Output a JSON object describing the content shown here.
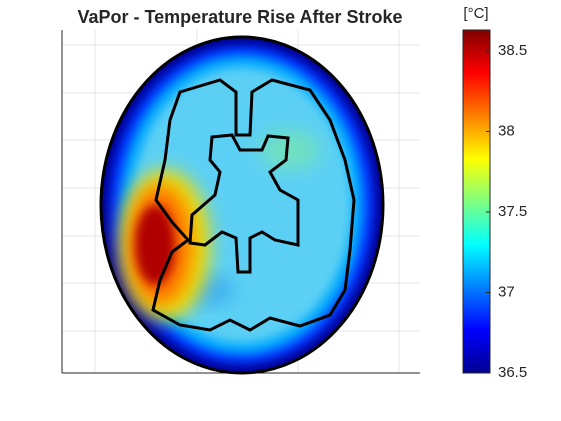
{
  "chart_data": {
    "type": "heatmap",
    "title": "VaPor - Temperature Rise After Stroke",
    "colorbar_label": "[°C]",
    "colormap": "jet",
    "clim": [
      36.5,
      38.63
    ],
    "cticks": [
      36.5,
      37,
      37.5,
      38,
      38.5
    ]
  }
}
